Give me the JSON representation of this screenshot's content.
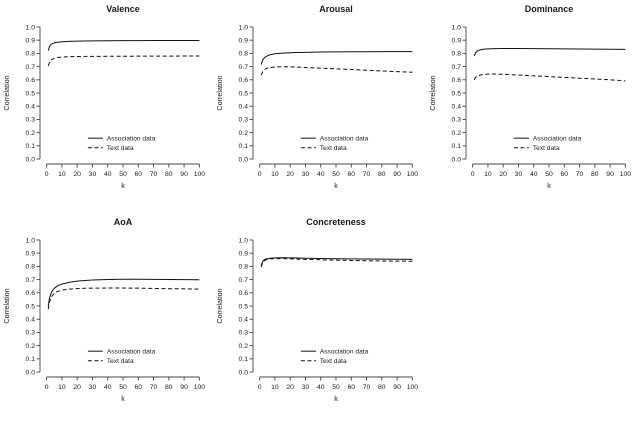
{
  "figure": {
    "background": "#ffffff",
    "line_color": "#111111",
    "axis_color": "#444444",
    "text_color": "#1a1a1a"
  },
  "chart_data": [
    {
      "type": "line",
      "title": "Valence",
      "xlabel": "k",
      "ylabel": "Correlation",
      "xlim": [
        0,
        100
      ],
      "ylim": [
        0,
        1
      ],
      "xticks": [
        0,
        10,
        20,
        30,
        40,
        50,
        60,
        70,
        80,
        90,
        100
      ],
      "yticks": [
        0,
        0.1,
        0.2,
        0.3,
        0.4,
        0.5,
        0.6,
        0.7,
        0.8,
        0.9,
        1
      ],
      "legend": {
        "position": "inside-bottom-center",
        "entries": [
          "Association data",
          "Text data"
        ]
      },
      "x": [
        1,
        2,
        3,
        4,
        5,
        7,
        10,
        15,
        20,
        25,
        30,
        40,
        50,
        60,
        70,
        80,
        90,
        100
      ],
      "series": [
        {
          "name": "Association data",
          "line_style": "solid",
          "values": [
            0.82,
            0.855,
            0.868,
            0.875,
            0.879,
            0.884,
            0.888,
            0.891,
            0.893,
            0.894,
            0.895,
            0.896,
            0.897,
            0.897,
            0.898,
            0.898,
            0.898,
            0.898
          ]
        },
        {
          "name": "Text data",
          "line_style": "dashed",
          "values": [
            0.705,
            0.735,
            0.75,
            0.757,
            0.762,
            0.768,
            0.772,
            0.775,
            0.776,
            0.777,
            0.777,
            0.778,
            0.778,
            0.779,
            0.779,
            0.779,
            0.78,
            0.78
          ]
        }
      ]
    },
    {
      "type": "line",
      "title": "Arousal",
      "xlabel": "k",
      "ylabel": "Correlation",
      "xlim": [
        0,
        100
      ],
      "ylim": [
        0,
        1
      ],
      "xticks": [
        0,
        10,
        20,
        30,
        40,
        50,
        60,
        70,
        80,
        90,
        100
      ],
      "yticks": [
        0,
        0.1,
        0.2,
        0.3,
        0.4,
        0.5,
        0.6,
        0.7,
        0.8,
        0.9,
        1
      ],
      "legend": {
        "position": "inside-bottom-center",
        "entries": [
          "Association data",
          "Text data"
        ]
      },
      "x": [
        1,
        2,
        3,
        4,
        5,
        7,
        10,
        15,
        20,
        25,
        30,
        40,
        50,
        60,
        70,
        80,
        90,
        100
      ],
      "series": [
        {
          "name": "Association data",
          "line_style": "solid",
          "values": [
            0.715,
            0.75,
            0.765,
            0.775,
            0.781,
            0.79,
            0.797,
            0.802,
            0.805,
            0.807,
            0.808,
            0.81,
            0.811,
            0.812,
            0.812,
            0.813,
            0.813,
            0.813
          ]
        },
        {
          "name": "Text data",
          "line_style": "dashed",
          "values": [
            0.635,
            0.66,
            0.675,
            0.683,
            0.688,
            0.693,
            0.697,
            0.699,
            0.698,
            0.696,
            0.693,
            0.688,
            0.683,
            0.678,
            0.672,
            0.667,
            0.662,
            0.657
          ]
        }
      ]
    },
    {
      "type": "line",
      "title": "Dominance",
      "xlabel": "k",
      "ylabel": "Correlation",
      "xlim": [
        0,
        100
      ],
      "ylim": [
        0,
        1
      ],
      "xticks": [
        0,
        10,
        20,
        30,
        40,
        50,
        60,
        70,
        80,
        90,
        100
      ],
      "yticks": [
        0,
        0.1,
        0.2,
        0.3,
        0.4,
        0.5,
        0.6,
        0.7,
        0.8,
        0.9,
        1
      ],
      "legend": {
        "position": "inside-bottom-center",
        "entries": [
          "Association data",
          "Text data"
        ]
      },
      "x": [
        1,
        2,
        3,
        4,
        5,
        7,
        10,
        15,
        20,
        25,
        30,
        40,
        50,
        60,
        70,
        80,
        90,
        100
      ],
      "series": [
        {
          "name": "Association data",
          "line_style": "solid",
          "values": [
            0.78,
            0.805,
            0.817,
            0.823,
            0.827,
            0.831,
            0.834,
            0.836,
            0.837,
            0.837,
            0.837,
            0.836,
            0.835,
            0.834,
            0.833,
            0.832,
            0.831,
            0.83
          ]
        },
        {
          "name": "Text data",
          "line_style": "dashed",
          "values": [
            0.6,
            0.618,
            0.627,
            0.632,
            0.636,
            0.64,
            0.643,
            0.644,
            0.642,
            0.639,
            0.636,
            0.63,
            0.624,
            0.618,
            0.612,
            0.606,
            0.6,
            0.592
          ]
        }
      ]
    },
    {
      "type": "line",
      "title": "AoA",
      "xlabel": "k",
      "ylabel": "Correlation",
      "xlim": [
        0,
        100
      ],
      "ylim": [
        0,
        1
      ],
      "xticks": [
        0,
        10,
        20,
        30,
        40,
        50,
        60,
        70,
        80,
        90,
        100
      ],
      "yticks": [
        0,
        0.1,
        0.2,
        0.3,
        0.4,
        0.5,
        0.6,
        0.7,
        0.8,
        0.9,
        1
      ],
      "legend": {
        "position": "inside-bottom-center",
        "entries": [
          "Association data",
          "Text data"
        ]
      },
      "x": [
        1,
        2,
        3,
        4,
        5,
        7,
        10,
        15,
        20,
        25,
        30,
        40,
        50,
        60,
        70,
        80,
        90,
        100
      ],
      "series": [
        {
          "name": "Association data",
          "line_style": "solid",
          "values": [
            0.5,
            0.565,
            0.6,
            0.62,
            0.634,
            0.652,
            0.666,
            0.68,
            0.688,
            0.693,
            0.697,
            0.701,
            0.703,
            0.703,
            0.702,
            0.701,
            0.7,
            0.699
          ]
        },
        {
          "name": "Text data",
          "line_style": "dashed",
          "values": [
            0.475,
            0.535,
            0.565,
            0.583,
            0.595,
            0.61,
            0.62,
            0.628,
            0.632,
            0.634,
            0.635,
            0.636,
            0.636,
            0.635,
            0.633,
            0.631,
            0.63,
            0.628
          ]
        }
      ]
    },
    {
      "type": "line",
      "title": "Concreteness",
      "xlabel": "k",
      "ylabel": "Correlation",
      "xlim": [
        0,
        100
      ],
      "ylim": [
        0,
        1
      ],
      "xticks": [
        0,
        10,
        20,
        30,
        40,
        50,
        60,
        70,
        80,
        90,
        100
      ],
      "yticks": [
        0,
        0.1,
        0.2,
        0.3,
        0.4,
        0.5,
        0.6,
        0.7,
        0.8,
        0.9,
        1
      ],
      "legend": {
        "position": "inside-bottom-center",
        "entries": [
          "Association data",
          "Text data"
        ]
      },
      "x": [
        1,
        2,
        3,
        4,
        5,
        7,
        10,
        15,
        20,
        25,
        30,
        40,
        50,
        60,
        70,
        80,
        90,
        100
      ],
      "series": [
        {
          "name": "Association data",
          "line_style": "solid",
          "values": [
            0.805,
            0.838,
            0.85,
            0.856,
            0.859,
            0.862,
            0.864,
            0.865,
            0.864,
            0.863,
            0.862,
            0.86,
            0.858,
            0.857,
            0.856,
            0.855,
            0.854,
            0.853
          ]
        },
        {
          "name": "Text data",
          "line_style": "dashed",
          "values": [
            0.795,
            0.828,
            0.842,
            0.849,
            0.853,
            0.857,
            0.859,
            0.859,
            0.857,
            0.855,
            0.853,
            0.85,
            0.847,
            0.845,
            0.843,
            0.841,
            0.84,
            0.839
          ]
        }
      ]
    }
  ]
}
